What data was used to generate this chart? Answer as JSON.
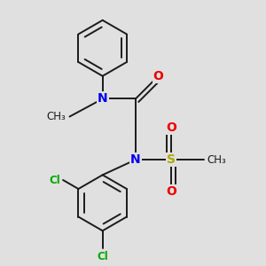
{
  "background_color": "#e0e0e0",
  "bond_color": "#1a1a1a",
  "N_color": "#0000ee",
  "O_color": "#ee0000",
  "S_color": "#aaaa00",
  "Cl_color": "#00aa00",
  "bond_width": 1.4,
  "figsize": [
    3.0,
    3.0
  ],
  "dpi": 100,
  "xlim": [
    0,
    10
  ],
  "ylim": [
    0,
    10
  ]
}
